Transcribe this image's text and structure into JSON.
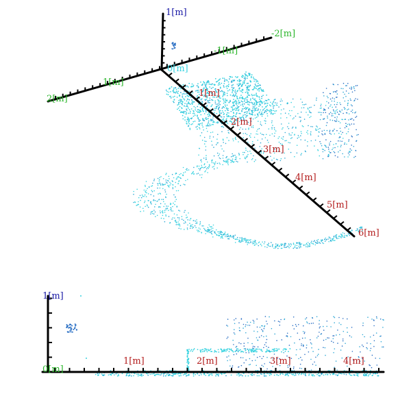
{
  "colors": {
    "x_label": "#b31b1b",
    "y_label": "#2ab52a",
    "z_label": "#1a1aa6",
    "point_light": "#38d3e0",
    "point_mid": "#2fa9d6",
    "point_dark": "#2a6fc4",
    "axis": "#000000"
  },
  "top_view": {
    "x_axis_labels": [
      "1[m]",
      "2[m]",
      "3[m]",
      "4[m]",
      "5[m]",
      "6[m]"
    ],
    "y_axis_labels": [
      "2[m]",
      "1[m]",
      "-1[m]",
      "-2[m]"
    ],
    "z_axis_labels": [
      "1[m]",
      "0[m]"
    ]
  },
  "bottom_view": {
    "x_axis_labels": [
      "1[m]",
      "2[m]",
      "3[m]",
      "4[m]"
    ],
    "z_axis_labels": [
      "1[m]",
      "0[m]"
    ]
  }
}
